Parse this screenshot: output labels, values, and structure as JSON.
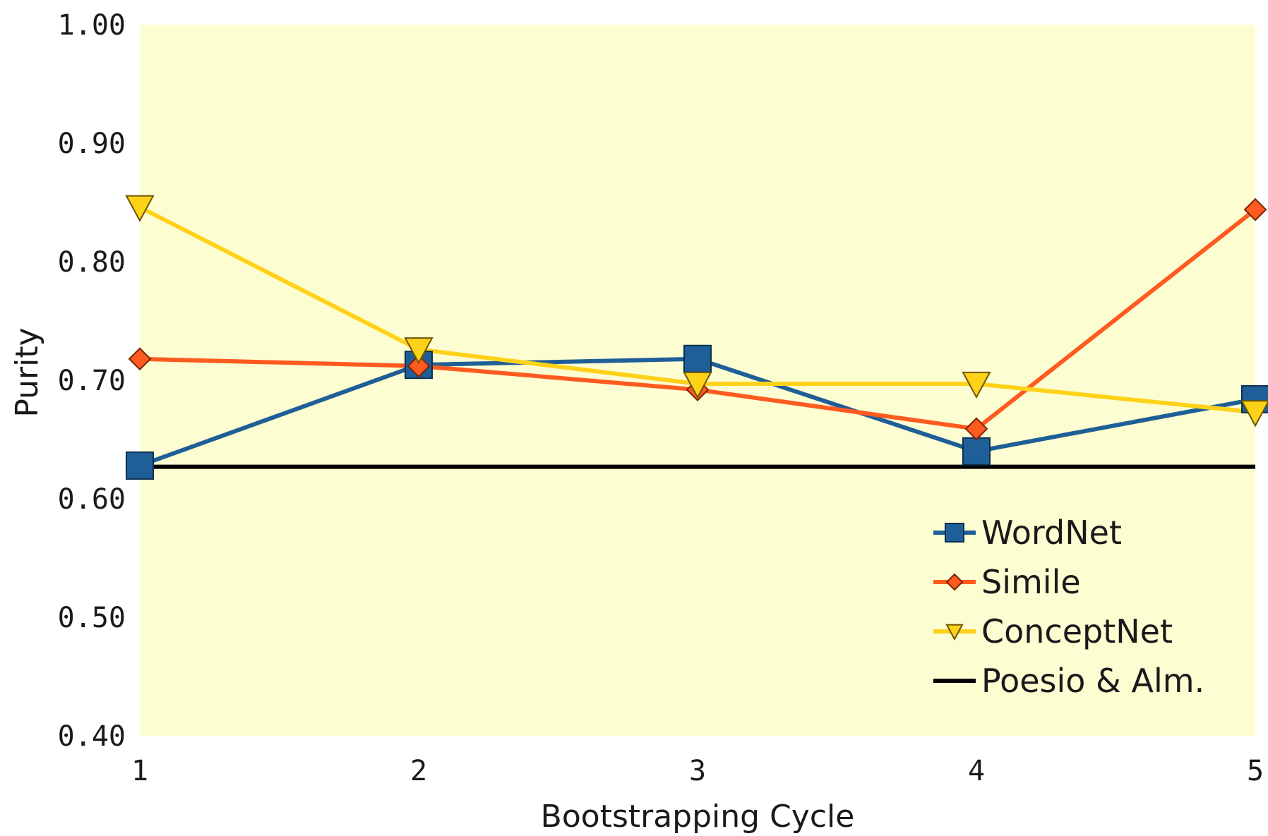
{
  "chart_data": {
    "type": "line",
    "title": "",
    "xlabel": "Bootstrapping Cycle",
    "ylabel": "Purity",
    "x": [
      1,
      2,
      3,
      4,
      5
    ],
    "x_tick_labels": [
      "1",
      "2",
      "3",
      "4",
      "5"
    ],
    "ylim": [
      0.4,
      1.0
    ],
    "y_tick_labels": [
      "0.40",
      "0.50",
      "0.60",
      "0.70",
      "0.80",
      "0.90",
      "1.00"
    ],
    "grid": false,
    "legend_position": "bottom-right",
    "plot_background": "#fdfdd2",
    "series": [
      {
        "name": "WordNet",
        "values": [
          0.628,
          0.713,
          0.718,
          0.64,
          0.684
        ],
        "color": "#1f5f97",
        "marker": "square"
      },
      {
        "name": "Simile",
        "values": [
          0.718,
          0.712,
          0.692,
          0.659,
          0.844
        ],
        "color": "#ff5a1f",
        "marker": "diamond"
      },
      {
        "name": "ConceptNet",
        "values": [
          0.846,
          0.726,
          0.697,
          0.697,
          0.673
        ],
        "color": "#ffd21a",
        "marker": "triangle-down"
      },
      {
        "name": "Poesio & Alm.",
        "values": [
          0.627,
          0.627,
          0.627,
          0.627,
          0.627
        ],
        "color": "#000000",
        "marker": "none"
      }
    ]
  }
}
